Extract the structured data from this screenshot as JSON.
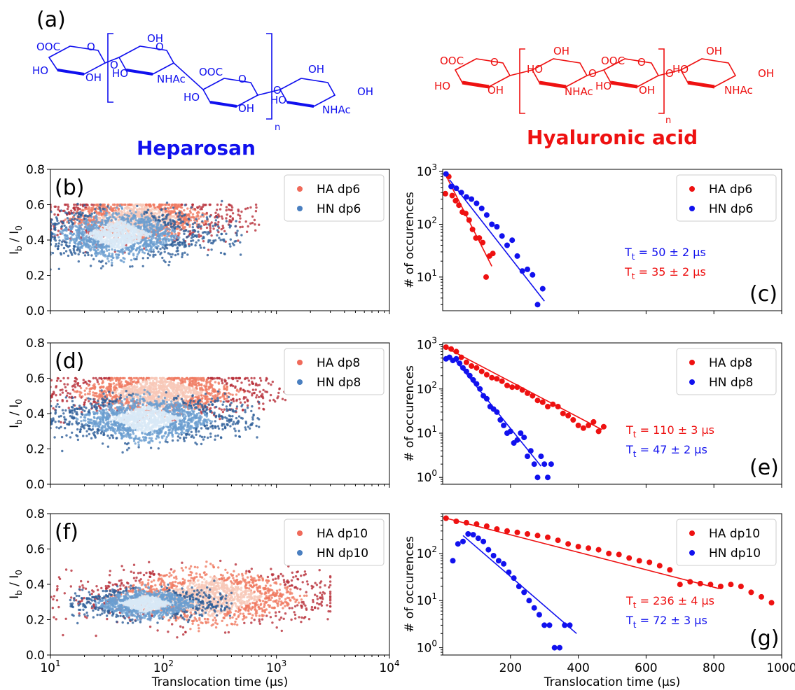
{
  "panel_a": {
    "label": "(a)",
    "heparosan": {
      "name": "Heparosan",
      "color": "#1010ee",
      "labels": [
        "OOC",
        "HO",
        "OH",
        "OH",
        "HO",
        "NHAc",
        "OOC",
        "HO",
        "OH",
        "OH",
        "HO",
        "NHAc",
        "OH",
        "O",
        "O",
        "O",
        "O",
        "O",
        "n"
      ]
    },
    "hyaluronic": {
      "name": "Hyaluronic acid",
      "color": "#ee1111",
      "labels": [
        "OOC",
        "HO",
        "OH",
        "OH",
        "HO",
        "NHAc",
        "OOC",
        "HO",
        "OH",
        "OH",
        "HO",
        "NHAc",
        "OH",
        "O",
        "O",
        "O",
        "O",
        "n"
      ]
    }
  },
  "colors": {
    "ha": "#ee1111",
    "hn": "#1111ee",
    "ha_scatter": "#f06a5a",
    "hn_scatter": "#4a7fc0"
  },
  "chart_data": [
    {
      "id": "b",
      "label": "(b)",
      "type": "scatter",
      "xscale": "log",
      "xlim": [
        10,
        10000
      ],
      "ylim": [
        0.0,
        0.8
      ],
      "ylabel": "I_b / I_0",
      "xlabel": "",
      "yticks": [
        "0.0",
        "0.2",
        "0.4",
        "0.6",
        "0.8"
      ],
      "xticks": [],
      "legend": [
        "HA dp6",
        "HN dp6"
      ],
      "legend_loc": "upper right",
      "series": [
        {
          "name": "HA dp6",
          "center": [
            60,
            0.52
          ],
          "xrange": [
            10,
            700
          ],
          "yrange": [
            0.25,
            0.6
          ],
          "n": 1400,
          "color": "#f06a5a"
        },
        {
          "name": "HN dp6",
          "center": [
            40,
            0.43
          ],
          "xrange": [
            10,
            500
          ],
          "yrange": [
            0.22,
            0.62
          ],
          "n": 1800,
          "color": "#4a7fc0"
        }
      ]
    },
    {
      "id": "c",
      "label": "(c)",
      "type": "scatter-fit",
      "yscale": "log",
      "xlim": [
        0,
        1000
      ],
      "ylim": [
        2.3,
        1100
      ],
      "ylabel": "# of occurences",
      "xlabel": "",
      "yticks": [
        "10^1",
        "10^2",
        "10^3"
      ],
      "xticks": [],
      "legend": [
        "HA dp6",
        "HN dp6"
      ],
      "legend_loc": "upper right",
      "annotations": [
        "T_t = 50 ± 2 μs",
        "T_t = 35 ± 2  μs"
      ],
      "series": [
        {
          "name": "HA dp6",
          "color": "#ee1111",
          "x": [
            8,
            18,
            28,
            38,
            48,
            58,
            68,
            78,
            88,
            98,
            108,
            118,
            128,
            138,
            148
          ],
          "y": [
            380,
            800,
            350,
            280,
            230,
            170,
            160,
            120,
            80,
            55,
            55,
            45,
            10,
            25,
            28
          ],
          "fit": [
            [
              15,
              720
            ],
            [
              145,
              16
            ]
          ]
        },
        {
          "name": "HN dp6",
          "color": "#1111ee",
          "x": [
            10,
            25,
            40,
            55,
            70,
            85,
            100,
            115,
            130,
            145,
            160,
            175,
            190,
            205,
            220,
            235,
            250,
            265,
            280,
            295
          ],
          "y": [
            900,
            520,
            480,
            400,
            330,
            300,
            250,
            200,
            150,
            100,
            90,
            60,
            40,
            50,
            25,
            13,
            14,
            11,
            3,
            6
          ],
          "fit": [
            [
              20,
              700
            ],
            [
              300,
              3.5
            ]
          ]
        }
      ]
    },
    {
      "id": "d",
      "label": "(d)",
      "type": "scatter",
      "xscale": "log",
      "xlim": [
        10,
        10000
      ],
      "ylim": [
        0.0,
        0.8
      ],
      "ylabel": "I_b / I_0",
      "xlabel": "",
      "yticks": [
        "0.0",
        "0.2",
        "0.4",
        "0.6",
        "0.8"
      ],
      "xticks": [],
      "legend": [
        "HA dp8",
        "HN dp8"
      ],
      "legend_loc": "upper right",
      "series": [
        {
          "name": "HA dp8",
          "center": [
            90,
            0.52
          ],
          "xrange": [
            10,
            1200
          ],
          "yrange": [
            0.25,
            0.6
          ],
          "n": 1600,
          "color": "#f06a5a"
        },
        {
          "name": "HN dp8",
          "center": [
            70,
            0.37
          ],
          "xrange": [
            10,
            700
          ],
          "yrange": [
            0.18,
            0.55
          ],
          "n": 1800,
          "color": "#4a7fc0"
        }
      ]
    },
    {
      "id": "e",
      "label": "(e)",
      "type": "scatter-fit",
      "yscale": "log",
      "xlim": [
        0,
        1000
      ],
      "ylim": [
        0.7,
        1100
      ],
      "ylabel": "# of occurences",
      "xlabel": "",
      "yticks": [
        "10^0",
        "10^1",
        "10^2",
        "10^3"
      ],
      "xticks": [],
      "legend": [
        "HA dp8",
        "HN dp8"
      ],
      "legend_loc": "upper right",
      "annotations": [
        "T_t = 110 ± 3  μs",
        "T_t = 47 ± 2 μs"
      ],
      "series": [
        {
          "name": "HA dp8",
          "color": "#ee1111",
          "x": [
            10,
            25,
            40,
            55,
            70,
            85,
            100,
            115,
            130,
            145,
            160,
            175,
            190,
            205,
            220,
            235,
            250,
            265,
            280,
            295,
            310,
            325,
            340,
            355,
            370,
            385,
            400,
            415,
            430,
            445,
            460,
            475
          ],
          "y": [
            880,
            800,
            700,
            520,
            400,
            330,
            300,
            250,
            210,
            180,
            170,
            150,
            120,
            110,
            110,
            95,
            80,
            70,
            55,
            50,
            40,
            45,
            40,
            28,
            25,
            20,
            15,
            13,
            15,
            18,
            11,
            14
          ],
          "fit": [
            [
              20,
              780
            ],
            [
              470,
              12
            ]
          ]
        },
        {
          "name": "HN dp8",
          "color": "#1111ee",
          "x": [
            10,
            20,
            30,
            40,
            50,
            60,
            70,
            80,
            90,
            100,
            110,
            120,
            130,
            140,
            150,
            160,
            170,
            180,
            190,
            200,
            210,
            220,
            230,
            240,
            250,
            260,
            270,
            280,
            290,
            300,
            310,
            320
          ],
          "y": [
            480,
            520,
            440,
            480,
            380,
            300,
            250,
            200,
            160,
            130,
            100,
            70,
            60,
            40,
            35,
            30,
            20,
            15,
            10,
            11,
            6,
            7,
            10,
            8,
            3,
            4,
            2,
            1,
            3,
            2,
            1,
            2
          ],
          "fit": [
            [
              40,
              420
            ],
            [
              290,
              1.8
            ]
          ]
        }
      ]
    },
    {
      "id": "f",
      "label": "(f)",
      "type": "scatter",
      "xscale": "log",
      "xlim": [
        10,
        10000
      ],
      "ylim": [
        0.0,
        0.8
      ],
      "ylabel": "I_b / I_0",
      "xlabel": "Translocation time (μs)",
      "yticks": [
        "0.0",
        "0.2",
        "0.4",
        "0.6",
        "0.8"
      ],
      "xticks": [
        "10^1",
        "10^2",
        "10^3",
        "10^4"
      ],
      "legend": [
        "HA dp10",
        "HN dp10"
      ],
      "legend_loc": "upper right",
      "series": [
        {
          "name": "HA dp10",
          "center": [
            250,
            0.33
          ],
          "xrange": [
            10,
            3000
          ],
          "yrange": [
            0.1,
            0.55
          ],
          "n": 1800,
          "color": "#f06a5a"
        },
        {
          "name": "HN dp10",
          "center": [
            70,
            0.29
          ],
          "xrange": [
            15,
            400
          ],
          "yrange": [
            0.18,
            0.42
          ],
          "n": 1400,
          "color": "#4a7fc0"
        }
      ]
    },
    {
      "id": "g",
      "label": "(g)",
      "type": "scatter-fit",
      "yscale": "log",
      "xlim": [
        0,
        1000
      ],
      "ylim": [
        0.7,
        700
      ],
      "ylabel": "# of occurences",
      "xlabel": "Translocation time (μs)",
      "yticks": [
        "10^0",
        "10^1",
        "10^2"
      ],
      "xticks": [
        "200",
        "400",
        "600",
        "800",
        "1000"
      ],
      "legend": [
        "HA dp10",
        "HN dp10"
      ],
      "legend_loc": "upper right",
      "annotations": [
        "T_t = 236 ± 4  μs",
        "T_t = 72 ± 3 μs"
      ],
      "series": [
        {
          "name": "HA dp10",
          "color": "#ee1111",
          "x": [
            10,
            40,
            70,
            100,
            130,
            160,
            190,
            220,
            250,
            280,
            310,
            340,
            370,
            400,
            430,
            460,
            490,
            520,
            550,
            580,
            610,
            640,
            670,
            700,
            730,
            760,
            790,
            820,
            850,
            880,
            910,
            940,
            970
          ],
          "y": [
            560,
            480,
            450,
            420,
            380,
            330,
            300,
            280,
            260,
            240,
            220,
            190,
            160,
            140,
            130,
            120,
            100,
            95,
            80,
            70,
            65,
            55,
            45,
            22,
            25,
            23,
            22,
            20,
            22,
            20,
            15,
            12,
            9
          ],
          "fit": [
            [
              10,
              560
            ],
            [
              815,
              18
            ]
          ]
        },
        {
          "name": "HN dp10",
          "color": "#1111ee",
          "x": [
            30,
            45,
            60,
            75,
            90,
            105,
            120,
            135,
            150,
            165,
            180,
            195,
            210,
            225,
            240,
            255,
            270,
            285,
            300,
            315,
            330,
            345,
            360,
            375
          ],
          "y": [
            70,
            160,
            180,
            260,
            250,
            210,
            180,
            120,
            90,
            70,
            60,
            40,
            30,
            20,
            15,
            10,
            7,
            5,
            3,
            3,
            1,
            1,
            3,
            3
          ],
          "fit": [
            [
              60,
              240
            ],
            [
              395,
              2
            ]
          ]
        }
      ]
    }
  ]
}
